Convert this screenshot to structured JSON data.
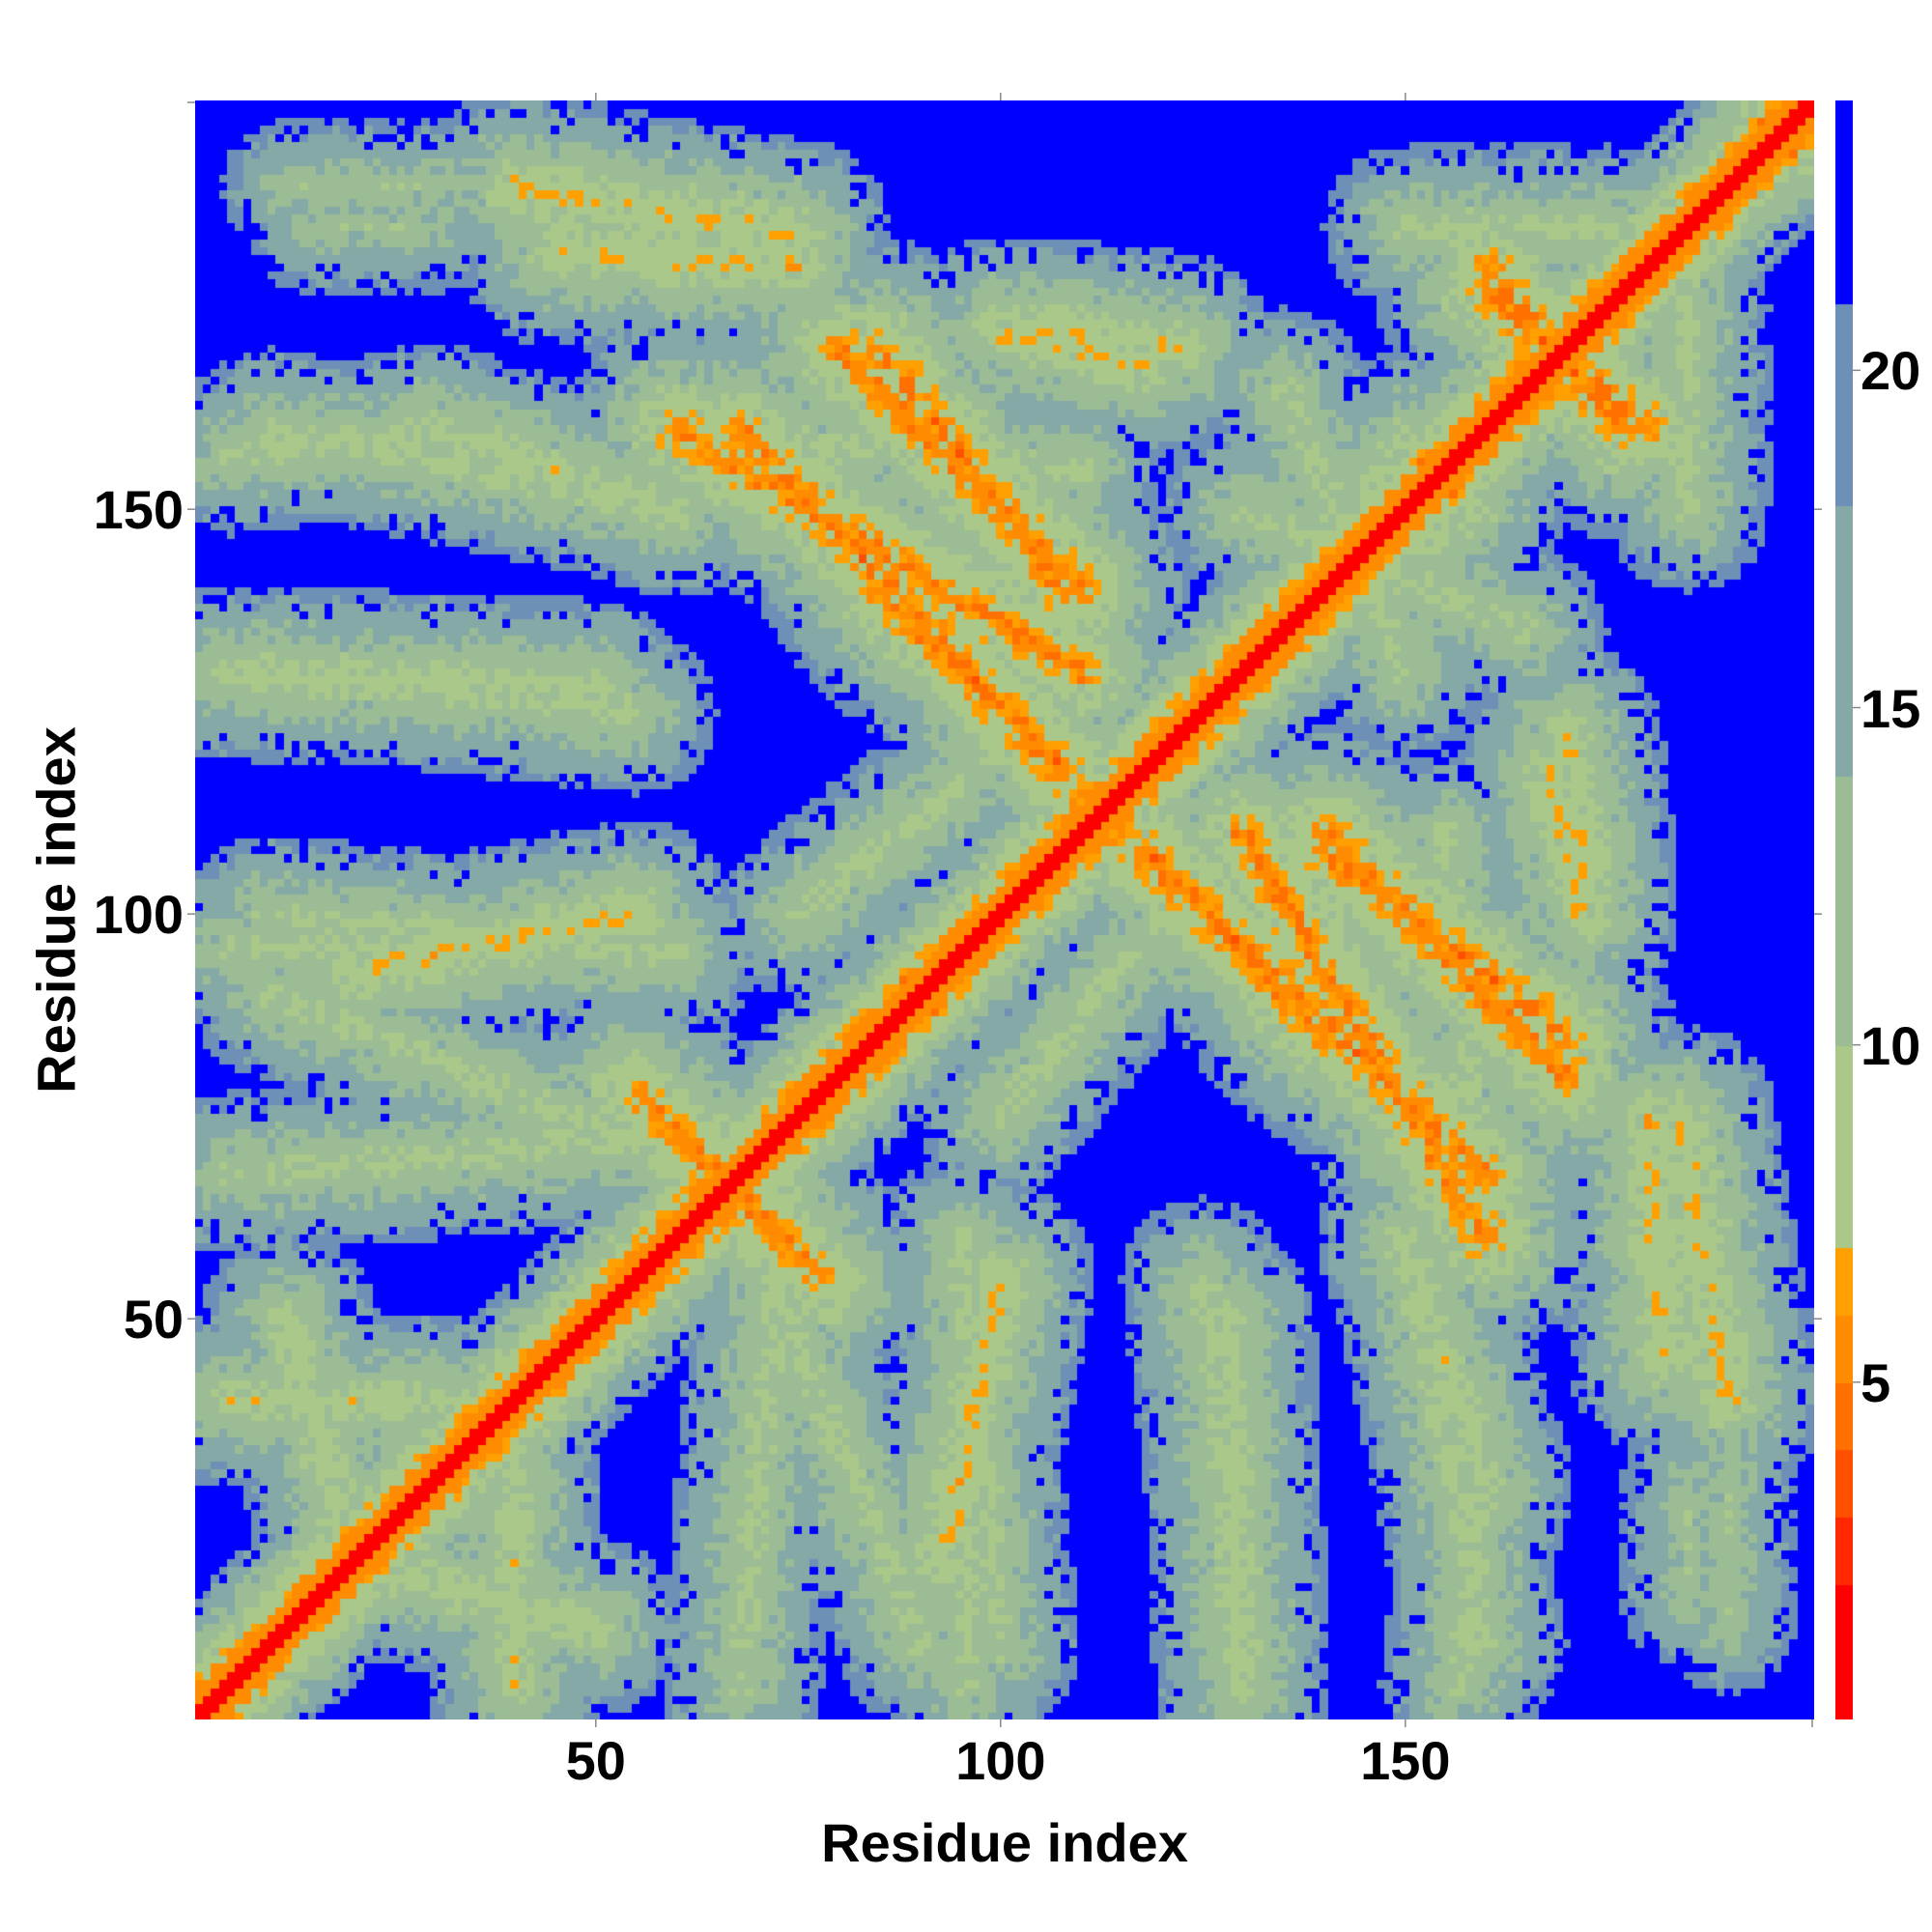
{
  "chart_data": {
    "type": "heatmap",
    "title": "",
    "xlabel": "Residue index",
    "ylabel": "Residue index",
    "n_residues": 200,
    "xlim": [
      1,
      200
    ],
    "ylim": [
      1,
      200
    ],
    "x_ticks": [
      50,
      100,
      150
    ],
    "y_ticks": [
      50,
      100,
      150
    ],
    "colorbar": {
      "ticks": [
        5,
        10,
        15,
        20
      ],
      "range": [
        0,
        24
      ],
      "bins": [
        {
          "max": 2,
          "color": "#ff0000"
        },
        {
          "max": 3,
          "color": "#ff2800"
        },
        {
          "max": 4,
          "color": "#ff5000"
        },
        {
          "max": 5,
          "color": "#ff7000"
        },
        {
          "max": 6,
          "color": "#ff8c00"
        },
        {
          "max": 7,
          "color": "#ffa000"
        },
        {
          "max": 10,
          "color": "#aac88a"
        },
        {
          "max": 14,
          "color": "#9bbc94"
        },
        {
          "max": 18,
          "color": "#85a9a6"
        },
        {
          "max": 21,
          "color": "#6e8fb6"
        },
        {
          "max": 24,
          "color": "#0000ff"
        }
      ]
    },
    "contact_segments": [
      {
        "x0": 1,
        "y0": 1,
        "x1": 200,
        "y1": 200,
        "kind": "diagonal"
      },
      {
        "x0": 12,
        "y0": 190,
        "x1": 42,
        "y1": 190,
        "dist": 12
      },
      {
        "x0": 40,
        "y0": 190,
        "x1": 75,
        "y1": 184,
        "dist": 8
      },
      {
        "x0": 5,
        "y0": 157,
        "x1": 30,
        "y1": 160,
        "dist": 10
      },
      {
        "x0": 30,
        "y0": 160,
        "x1": 60,
        "y1": 150,
        "dist": 9
      },
      {
        "x0": 5,
        "y0": 130,
        "x1": 50,
        "y1": 128,
        "dist": 9
      },
      {
        "x0": 5,
        "y0": 96,
        "x1": 45,
        "y1": 96,
        "dist": 10
      },
      {
        "x0": 20,
        "y0": 93,
        "x1": 55,
        "y1": 100,
        "dist": 8
      },
      {
        "x0": 5,
        "y0": 68,
        "x1": 55,
        "y1": 72,
        "dist": 10
      },
      {
        "x0": 5,
        "y0": 40,
        "x1": 30,
        "y1": 40,
        "dist": 9
      },
      {
        "x0": 20,
        "y0": 20,
        "x1": 50,
        "y1": 12,
        "dist": 9
      },
      {
        "x0": 60,
        "y0": 160,
        "x1": 110,
        "y1": 130,
        "dist": 6
      },
      {
        "x0": 80,
        "y0": 170,
        "x1": 110,
        "y1": 140,
        "dist": 6
      },
      {
        "x0": 85,
        "y0": 140,
        "x1": 108,
        "y1": 118,
        "dist": 6
      },
      {
        "x0": 55,
        "y0": 78,
        "x1": 78,
        "y1": 55,
        "dist": 6
      },
      {
        "x0": 115,
        "y0": 110,
        "x1": 160,
        "y1": 68,
        "dist": 6
      },
      {
        "x0": 140,
        "y0": 108,
        "x1": 170,
        "y1": 85,
        "dist": 6
      },
      {
        "x0": 160,
        "y0": 177,
        "x1": 180,
        "y1": 160,
        "dist": 6
      },
      {
        "x0": 70,
        "y0": 60,
        "x1": 90,
        "y1": 10,
        "dist": 10
      },
      {
        "x0": 95,
        "y0": 60,
        "x1": 100,
        "y1": 10,
        "dist": 10
      },
      {
        "x0": 125,
        "y0": 55,
        "x1": 130,
        "y1": 10,
        "dist": 10
      },
      {
        "x0": 150,
        "y0": 60,
        "x1": 160,
        "y1": 10,
        "dist": 10
      },
      {
        "x0": 160,
        "y0": 60,
        "x1": 155,
        "y1": 110,
        "dist": 10
      },
      {
        "x0": 180,
        "y0": 75,
        "x1": 182,
        "y1": 45,
        "dist": 8
      },
      {
        "x0": 170,
        "y0": 122,
        "x1": 172,
        "y1": 105,
        "dist": 8
      },
      {
        "x0": 150,
        "y0": 185,
        "x1": 175,
        "y1": 185,
        "dist": 10
      },
      {
        "x0": 100,
        "y0": 172,
        "x1": 118,
        "y1": 168,
        "dist": 8
      },
      {
        "x0": 130,
        "y0": 150,
        "x1": 165,
        "y1": 135,
        "dist": 10
      },
      {
        "x0": 125,
        "y0": 120,
        "x1": 150,
        "y1": 160,
        "dist": 10
      },
      {
        "x0": 100,
        "y0": 75,
        "x1": 120,
        "y1": 100,
        "dist": 10
      },
      {
        "x0": 185,
        "y0": 30,
        "x1": 185,
        "y1": 15,
        "dist": 12
      }
    ]
  }
}
